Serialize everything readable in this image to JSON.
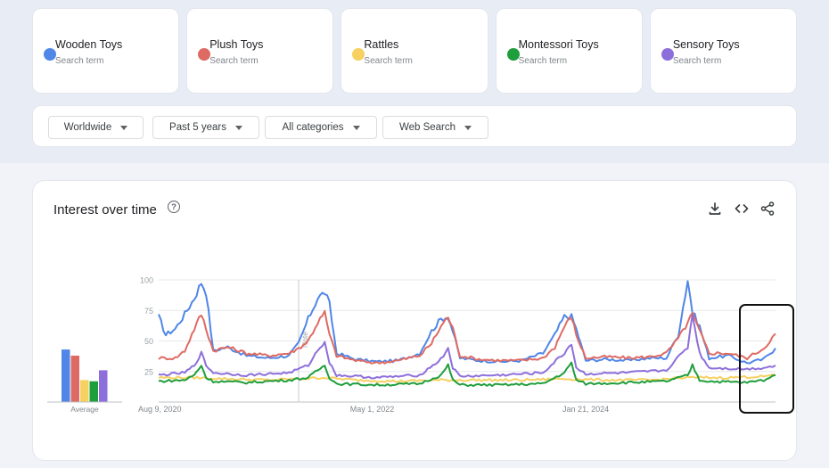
{
  "terms": [
    {
      "name": "Wooden Toys",
      "sub": "Search term",
      "color": "#4f86e8"
    },
    {
      "name": "Plush Toys",
      "sub": "Search term",
      "color": "#de6b63"
    },
    {
      "name": "Rattles",
      "sub": "Search term",
      "color": "#f6d061"
    },
    {
      "name": "Montessori Toys",
      "sub": "Search term",
      "color": "#1f9e3c"
    },
    {
      "name": "Sensory Toys",
      "sub": "Search term",
      "color": "#8d6fdb"
    }
  ],
  "filters": [
    {
      "label": "Worldwide"
    },
    {
      "label": "Past 5 years"
    },
    {
      "label": "All categories"
    },
    {
      "label": "Web Search"
    }
  ],
  "chart": {
    "title": "Interest over time",
    "help": "?",
    "icons": [
      "download-icon",
      "embed-code-icon",
      "share-icon"
    ]
  },
  "chart_data": {
    "type": "line",
    "title": "Interest over time",
    "yticks": [
      25,
      50,
      75,
      100
    ],
    "ylim": [
      0,
      100
    ],
    "xlim": [
      "2020-08-09",
      "2025-08-03"
    ],
    "xticks": [
      {
        "label": "Aug 9, 2020",
        "date": "2020-08-09"
      },
      {
        "label": "May 1, 2022",
        "date": "2022-05-01"
      },
      {
        "label": "Jan 21, 2024",
        "date": "2024-01-21"
      }
    ],
    "note": {
      "label": "Note",
      "date": "2021-09-26"
    },
    "average_label": "Average",
    "averages": [
      43,
      38,
      18,
      17,
      26
    ],
    "series": [
      {
        "name": "Wooden Toys",
        "color": "#4f86e8",
        "points": [
          [
            "2020-08-09",
            70
          ],
          [
            "2020-08-30",
            55
          ],
          [
            "2020-09-27",
            60
          ],
          [
            "2020-10-25",
            72
          ],
          [
            "2020-11-22",
            85
          ],
          [
            "2020-12-13",
            98
          ],
          [
            "2020-12-27",
            90
          ],
          [
            "2021-01-17",
            42
          ],
          [
            "2021-02-28",
            45
          ],
          [
            "2021-04-25",
            38
          ],
          [
            "2021-06-27",
            36
          ],
          [
            "2021-08-29",
            38
          ],
          [
            "2021-09-26",
            48
          ],
          [
            "2021-10-24",
            68
          ],
          [
            "2021-11-21",
            85
          ],
          [
            "2021-12-12",
            90
          ],
          [
            "2021-12-26",
            80
          ],
          [
            "2022-01-16",
            40
          ],
          [
            "2022-03-13",
            35
          ],
          [
            "2022-05-15",
            33
          ],
          [
            "2022-07-17",
            34
          ],
          [
            "2022-09-18",
            40
          ],
          [
            "2022-10-23",
            58
          ],
          [
            "2022-11-20",
            68
          ],
          [
            "2022-12-11",
            70
          ],
          [
            "2022-12-25",
            58
          ],
          [
            "2023-01-15",
            36
          ],
          [
            "2023-03-12",
            34
          ],
          [
            "2023-05-14",
            33
          ],
          [
            "2023-07-16",
            34
          ],
          [
            "2023-09-17",
            40
          ],
          [
            "2023-10-22",
            55
          ],
          [
            "2023-11-19",
            70
          ],
          [
            "2023-12-10",
            70
          ],
          [
            "2023-12-24",
            60
          ],
          [
            "2024-01-21",
            34
          ],
          [
            "2024-03-24",
            35
          ],
          [
            "2024-05-26",
            34
          ],
          [
            "2024-07-28",
            36
          ],
          [
            "2024-09-15",
            36
          ],
          [
            "2024-10-20",
            55
          ],
          [
            "2024-11-17",
            100
          ],
          [
            "2024-12-01",
            74
          ],
          [
            "2024-12-22",
            62
          ],
          [
            "2025-01-19",
            36
          ],
          [
            "2025-03-16",
            38
          ],
          [
            "2025-05-11",
            32
          ],
          [
            "2025-06-29",
            35
          ],
          [
            "2025-08-03",
            44
          ]
        ]
      },
      {
        "name": "Plush Toys",
        "color": "#de6b63",
        "points": [
          [
            "2020-08-09",
            36
          ],
          [
            "2020-09-27",
            36
          ],
          [
            "2020-10-25",
            42
          ],
          [
            "2020-11-22",
            60
          ],
          [
            "2020-12-13",
            72
          ],
          [
            "2020-12-27",
            60
          ],
          [
            "2021-01-17",
            42
          ],
          [
            "2021-02-28",
            45
          ],
          [
            "2021-04-25",
            40
          ],
          [
            "2021-06-27",
            38
          ],
          [
            "2021-08-29",
            40
          ],
          [
            "2021-09-26",
            44
          ],
          [
            "2021-10-24",
            50
          ],
          [
            "2021-11-21",
            65
          ],
          [
            "2021-12-12",
            73
          ],
          [
            "2021-12-26",
            55
          ],
          [
            "2022-01-16",
            38
          ],
          [
            "2022-03-13",
            34
          ],
          [
            "2022-05-15",
            32
          ],
          [
            "2022-07-17",
            34
          ],
          [
            "2022-09-18",
            38
          ],
          [
            "2022-10-23",
            48
          ],
          [
            "2022-11-20",
            62
          ],
          [
            "2022-12-11",
            70
          ],
          [
            "2022-12-25",
            60
          ],
          [
            "2023-01-15",
            38
          ],
          [
            "2023-03-12",
            35
          ],
          [
            "2023-05-14",
            34
          ],
          [
            "2023-07-16",
            34
          ],
          [
            "2023-09-17",
            36
          ],
          [
            "2023-10-22",
            45
          ],
          [
            "2023-11-19",
            62
          ],
          [
            "2023-12-10",
            70
          ],
          [
            "2023-12-24",
            55
          ],
          [
            "2024-01-21",
            36
          ],
          [
            "2024-03-24",
            37
          ],
          [
            "2024-05-26",
            36
          ],
          [
            "2024-07-28",
            37
          ],
          [
            "2024-09-15",
            40
          ],
          [
            "2024-10-20",
            52
          ],
          [
            "2024-11-17",
            65
          ],
          [
            "2024-12-01",
            72
          ],
          [
            "2024-12-22",
            58
          ],
          [
            "2025-01-19",
            40
          ],
          [
            "2025-03-16",
            40
          ],
          [
            "2025-05-11",
            36
          ],
          [
            "2025-06-29",
            44
          ],
          [
            "2025-08-03",
            56
          ]
        ]
      },
      {
        "name": "Rattles",
        "color": "#f6d061",
        "points": [
          [
            "2020-08-09",
            20
          ],
          [
            "2020-11-22",
            20
          ],
          [
            "2021-02-28",
            19
          ],
          [
            "2021-06-27",
            18
          ],
          [
            "2021-09-26",
            19
          ],
          [
            "2021-12-12",
            20
          ],
          [
            "2022-03-13",
            18
          ],
          [
            "2022-07-17",
            17
          ],
          [
            "2022-11-20",
            18
          ],
          [
            "2023-03-12",
            18
          ],
          [
            "2023-07-16",
            18
          ],
          [
            "2023-11-19",
            19
          ],
          [
            "2024-03-24",
            18
          ],
          [
            "2024-07-28",
            18
          ],
          [
            "2024-11-17",
            20
          ],
          [
            "2025-03-16",
            20
          ],
          [
            "2025-06-29",
            21
          ],
          [
            "2025-08-03",
            22
          ]
        ]
      },
      {
        "name": "Montessori Toys",
        "color": "#1f9e3c",
        "points": [
          [
            "2020-08-09",
            17
          ],
          [
            "2020-10-25",
            18
          ],
          [
            "2020-11-22",
            22
          ],
          [
            "2020-12-13",
            30
          ],
          [
            "2020-12-27",
            20
          ],
          [
            "2021-01-17",
            17
          ],
          [
            "2021-04-25",
            16
          ],
          [
            "2021-08-29",
            18
          ],
          [
            "2021-10-24",
            20
          ],
          [
            "2021-11-21",
            26
          ],
          [
            "2021-12-12",
            30
          ],
          [
            "2021-12-26",
            20
          ],
          [
            "2022-01-16",
            15
          ],
          [
            "2022-05-15",
            14
          ],
          [
            "2022-09-18",
            15
          ],
          [
            "2022-11-20",
            22
          ],
          [
            "2022-12-11",
            30
          ],
          [
            "2022-12-25",
            18
          ],
          [
            "2023-01-15",
            14
          ],
          [
            "2023-05-14",
            14
          ],
          [
            "2023-09-17",
            15
          ],
          [
            "2023-11-19",
            24
          ],
          [
            "2023-12-10",
            32
          ],
          [
            "2023-12-24",
            18
          ],
          [
            "2024-01-21",
            15
          ],
          [
            "2024-05-26",
            16
          ],
          [
            "2024-09-15",
            17
          ],
          [
            "2024-11-17",
            22
          ],
          [
            "2024-12-01",
            30
          ],
          [
            "2024-12-22",
            18
          ],
          [
            "2025-01-19",
            17
          ],
          [
            "2025-05-11",
            16
          ],
          [
            "2025-06-29",
            18
          ],
          [
            "2025-08-03",
            22
          ]
        ]
      },
      {
        "name": "Sensory Toys",
        "color": "#8d6fdb",
        "points": [
          [
            "2020-08-09",
            22
          ],
          [
            "2020-10-25",
            24
          ],
          [
            "2020-11-22",
            30
          ],
          [
            "2020-12-13",
            40
          ],
          [
            "2020-12-27",
            30
          ],
          [
            "2021-01-17",
            24
          ],
          [
            "2021-04-25",
            22
          ],
          [
            "2021-08-29",
            24
          ],
          [
            "2021-10-24",
            30
          ],
          [
            "2021-11-21",
            42
          ],
          [
            "2021-12-12",
            50
          ],
          [
            "2021-12-26",
            32
          ],
          [
            "2022-01-16",
            22
          ],
          [
            "2022-05-15",
            20
          ],
          [
            "2022-09-18",
            22
          ],
          [
            "2022-11-20",
            35
          ],
          [
            "2022-12-11",
            44
          ],
          [
            "2022-12-25",
            28
          ],
          [
            "2023-01-15",
            21
          ],
          [
            "2023-05-14",
            22
          ],
          [
            "2023-09-17",
            24
          ],
          [
            "2023-11-19",
            40
          ],
          [
            "2023-12-10",
            48
          ],
          [
            "2023-12-24",
            28
          ],
          [
            "2024-01-21",
            23
          ],
          [
            "2024-05-26",
            24
          ],
          [
            "2024-09-15",
            26
          ],
          [
            "2024-11-17",
            45
          ],
          [
            "2024-12-01",
            72
          ],
          [
            "2024-12-22",
            40
          ],
          [
            "2025-01-19",
            28
          ],
          [
            "2025-05-11",
            27
          ],
          [
            "2025-06-29",
            28
          ],
          [
            "2025-08-03",
            30
          ]
        ]
      }
    ]
  }
}
